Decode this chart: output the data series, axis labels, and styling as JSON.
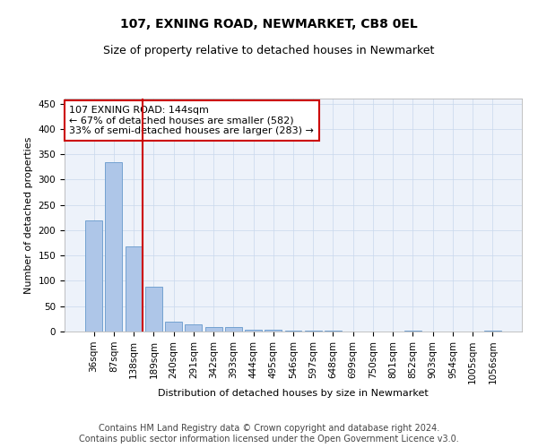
{
  "title1": "107, EXNING ROAD, NEWMARKET, CB8 0EL",
  "title2": "Size of property relative to detached houses in Newmarket",
  "xlabel": "Distribution of detached houses by size in Newmarket",
  "ylabel": "Number of detached properties",
  "bar_labels": [
    "36sqm",
    "87sqm",
    "138sqm",
    "189sqm",
    "240sqm",
    "291sqm",
    "342sqm",
    "393sqm",
    "444sqm",
    "495sqm",
    "546sqm",
    "597sqm",
    "648sqm",
    "699sqm",
    "750sqm",
    "801sqm",
    "852sqm",
    "903sqm",
    "954sqm",
    "1005sqm",
    "1056sqm"
  ],
  "bar_values": [
    220,
    335,
    168,
    88,
    20,
    15,
    8,
    8,
    4,
    3,
    2,
    2,
    1,
    0,
    0,
    0,
    1,
    0,
    0,
    0,
    1
  ],
  "bar_color": "#aec6e8",
  "bar_edge_color": "#6699cc",
  "vline_color": "#cc0000",
  "annotation_title": "107 EXNING ROAD: 144sqm",
  "annotation_line1": "← 67% of detached houses are smaller (582)",
  "annotation_line2": "33% of semi-detached houses are larger (283) →",
  "annotation_box_color": "#ffffff",
  "annotation_box_edge_color": "#cc0000",
  "ylim": [
    0,
    460
  ],
  "yticks": [
    0,
    50,
    100,
    150,
    200,
    250,
    300,
    350,
    400,
    450
  ],
  "footer1": "Contains HM Land Registry data © Crown copyright and database right 2024.",
  "footer2": "Contains public sector information licensed under the Open Government Licence v3.0.",
  "title1_fontsize": 10,
  "title2_fontsize": 9,
  "axis_label_fontsize": 8,
  "tick_fontsize": 7.5,
  "annotation_fontsize": 8,
  "footer_fontsize": 7
}
